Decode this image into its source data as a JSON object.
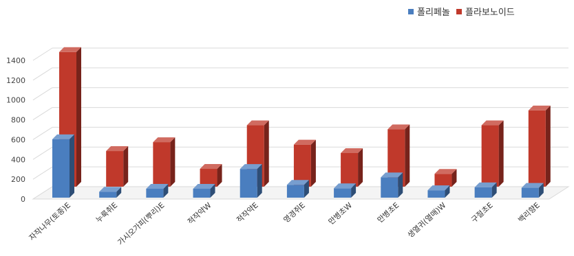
{
  "chart_data": {
    "type": "bar",
    "categories": [
      "자작나무(토종)E",
      "누룩취E",
      "가시오가피(뿌리)E",
      "적작약W",
      "적작약E",
      "영경쥐E",
      "만병초W",
      "만병초E",
      "생열귀(열매)W",
      "구절초E",
      "백리향E"
    ],
    "series": [
      {
        "name": "폴리페놀",
        "color": "#4a7ebf",
        "values": [
          590,
          60,
          90,
          90,
          290,
          130,
          95,
          205,
          75,
          105,
          100
        ]
      },
      {
        "name": "플라보노이드",
        "color": "#c0392b",
        "values": [
          1360,
          360,
          450,
          180,
          620,
          425,
          340,
          580,
          130,
          620,
          770
        ]
      }
    ],
    "yticks": [
      0,
      200,
      400,
      600,
      800,
      1000,
      1200,
      1400
    ],
    "ylim": [
      0,
      1400
    ],
    "grid": true,
    "legend_position": "top-right",
    "title": "",
    "xlabel": "",
    "ylabel": ""
  }
}
